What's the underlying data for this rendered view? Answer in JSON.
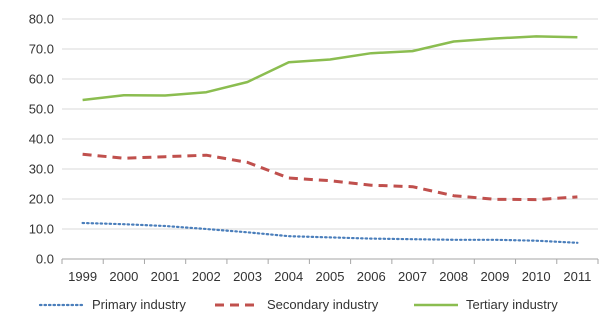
{
  "chart_data": {
    "type": "line",
    "title": "",
    "xlabel": "",
    "ylabel": "",
    "x": [
      "1999",
      "2000",
      "2001",
      "2002",
      "2003",
      "2004",
      "2005",
      "2006",
      "2007",
      "2008",
      "2009",
      "2010",
      "2011"
    ],
    "ylim": [
      0,
      80
    ],
    "yticks": [
      "0.0",
      "10.0",
      "20.0",
      "30.0",
      "40.0",
      "50.0",
      "60.0",
      "70.0",
      "80.0"
    ],
    "grid": "horizontal",
    "legend_position": "bottom",
    "series": [
      {
        "name": "Primary industry",
        "color": "#4a7ebb",
        "style": "dotted",
        "values": [
          12.0,
          11.6,
          11.0,
          10.0,
          8.9,
          7.6,
          7.2,
          6.8,
          6.6,
          6.4,
          6.4,
          6.1,
          5.4
        ]
      },
      {
        "name": "Secondary industry",
        "color": "#c0504d",
        "style": "dashed",
        "values": [
          34.9,
          33.6,
          34.1,
          34.6,
          32.2,
          27.0,
          26.1,
          24.6,
          24.1,
          21.1,
          19.9,
          19.8,
          20.7
        ]
      },
      {
        "name": "Tertiary industry",
        "color": "#8bbd50",
        "style": "solid",
        "values": [
          53.0,
          54.6,
          54.5,
          55.6,
          59.0,
          65.6,
          66.5,
          68.6,
          69.3,
          72.5,
          73.5,
          74.2,
          73.9
        ]
      }
    ]
  }
}
